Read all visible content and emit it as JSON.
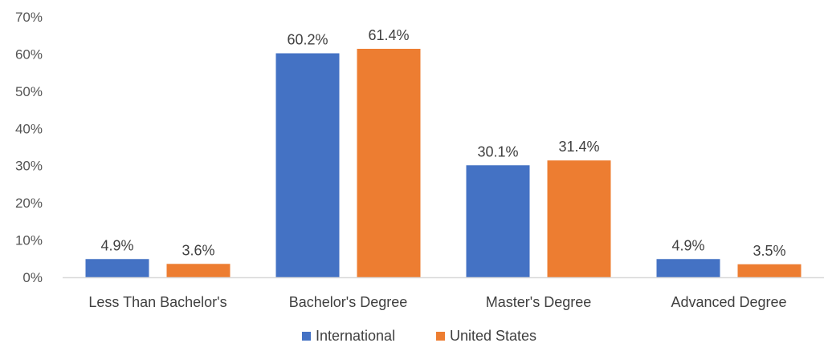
{
  "chart_data": {
    "type": "bar",
    "title": "",
    "xlabel": "",
    "ylabel": "",
    "categories": [
      "Less Than Bachelor's",
      "Bachelor's Degree",
      "Master's Degree",
      "Advanced Degree"
    ],
    "series": [
      {
        "name": "International",
        "color": "#4472C4",
        "values": [
          4.9,
          60.2,
          30.1,
          4.9
        ],
        "labels": [
          "4.9%",
          "60.2%",
          "30.1%",
          "4.9%"
        ]
      },
      {
        "name": "United States",
        "color": "#ED7D31",
        "values": [
          3.6,
          61.4,
          31.4,
          3.5
        ],
        "labels": [
          "3.6%",
          "61.4%",
          "31.4%",
          "3.5%"
        ]
      }
    ],
    "ylim": [
      0,
      70
    ],
    "yticks": [
      0,
      10,
      20,
      30,
      40,
      50,
      60,
      70
    ],
    "ytick_labels": [
      "0%",
      "10%",
      "20%",
      "30%",
      "40%",
      "50%",
      "60%",
      "70%"
    ],
    "grid": false,
    "legend": "bottom"
  }
}
